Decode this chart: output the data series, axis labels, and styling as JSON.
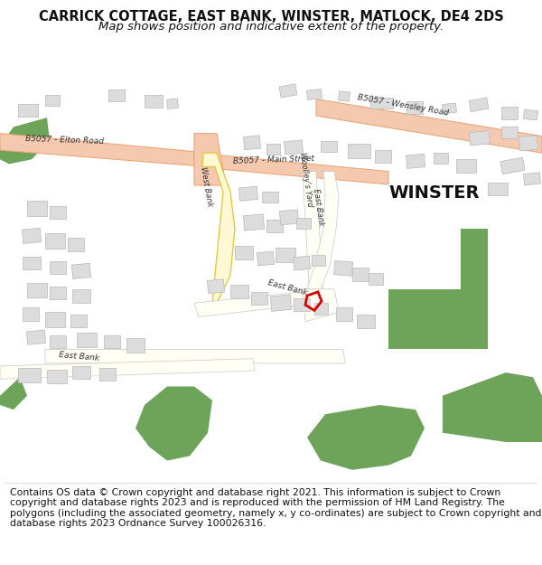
{
  "title_line1": "CARRICK COTTAGE, EAST BANK, WINSTER, MATLOCK, DE4 2DS",
  "title_line2": "Map shows position and indicative extent of the property.",
  "footer_text": "Contains OS data © Crown copyright and database right 2021. This information is subject to Crown copyright and database rights 2023 and is reproduced with the permission of HM Land Registry. The polygons (including the associated geometry, namely x, y co-ordinates) are subject to Crown copyright and database rights 2023 Ordnance Survey 100026316.",
  "map_bg": "#f8f8f0",
  "road_main_color": "#f5c9b0",
  "road_main_stroke": "#e8a87a",
  "road_minor_fill": "#fffff5",
  "road_minor_stroke": "#c8c8c8",
  "building_fill": "#dcdcdc",
  "building_stroke": "#b8b8b8",
  "green_fill": "#6ea35a",
  "green_light": "#b8d4a0",
  "plot_stroke": "#dd0000",
  "title_fontsize": 10.5,
  "subtitle_fontsize": 9.5,
  "footer_fontsize": 7.8,
  "winster_fontsize": 14
}
